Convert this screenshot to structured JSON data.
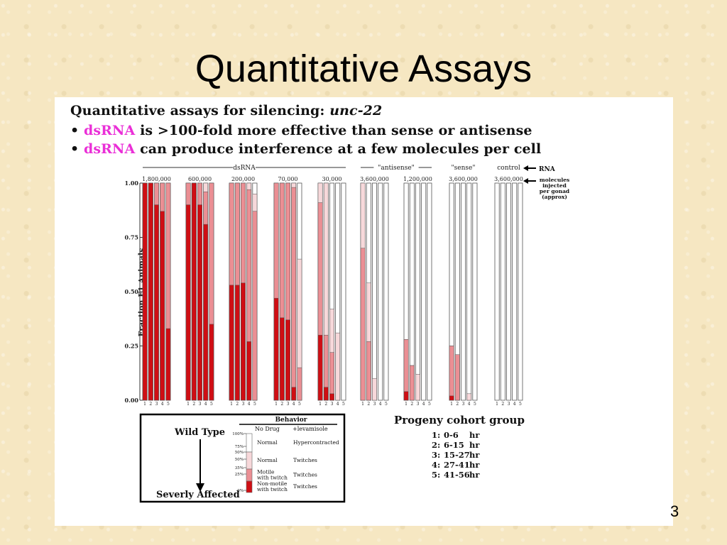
{
  "slide": {
    "title": "Quantitative Assays",
    "page_number": "3"
  },
  "heading": {
    "line1_prefix": "Quantitative assays for silencing: ",
    "line1_gene": "unc-22",
    "bullet": "•",
    "line2_pink": "dsRNA",
    "line2_rest": " is >100-fold more effective than sense or antisense",
    "line3_pink": "dsRNA",
    "line3_rest": " can produce interference at a few molecules per cell"
  },
  "chart_data": {
    "type": "bar",
    "subtype": "stacked",
    "ylabel": "Fraction F1 Animals",
    "ylim": [
      0,
      1
    ],
    "y_ticks": [
      "0.00",
      "0.25",
      "0.50",
      "0.75",
      "1.00"
    ],
    "bar_labels": [
      "1",
      "2",
      "3",
      "4",
      "5"
    ],
    "rna_label": "RNA",
    "molecules_label": [
      "molecules",
      "injected",
      "per gonad",
      "(approx)"
    ],
    "rna_groups": [
      {
        "name": "dsRNA",
        "groups": [
          0,
          1,
          2,
          3,
          4
        ]
      },
      {
        "name": "\"antisense\"",
        "groups": [
          5,
          6
        ]
      },
      {
        "name": "\"sense\"",
        "groups": [
          7
        ]
      },
      {
        "name": "control",
        "groups": [
          8
        ]
      }
    ],
    "series_colors": {
      "dark": "#cf0e14",
      "mid": "#eb8f94",
      "light": "#f7d8da",
      "white": "#ffffff"
    },
    "groups": [
      {
        "label": "1,800,000",
        "bars": [
          [
            1.0,
            1.0,
            1.0
          ],
          [
            1.0,
            1.0,
            1.0
          ],
          [
            0.9,
            1.0,
            1.0
          ],
          [
            0.87,
            1.0,
            1.0
          ],
          [
            0.33,
            1.0,
            1.0
          ]
        ]
      },
      {
        "label": "600,000",
        "bars": [
          [
            0.9,
            1.0,
            1.0
          ],
          [
            1.0,
            1.0,
            1.0
          ],
          [
            0.9,
            1.0,
            1.0
          ],
          [
            0.81,
            0.96,
            1.0
          ],
          [
            0.35,
            1.0,
            1.0
          ]
        ]
      },
      {
        "label": "200,000",
        "bars": [
          [
            0.53,
            1.0,
            1.0
          ],
          [
            0.53,
            1.0,
            1.0
          ],
          [
            0.54,
            1.0,
            1.0
          ],
          [
            0.27,
            0.97,
            1.0
          ],
          [
            0.0,
            0.87,
            0.95
          ]
        ]
      },
      {
        "label": "70,000",
        "bars": [
          [
            0.47,
            1.0,
            1.0
          ],
          [
            0.38,
            1.0,
            1.0
          ],
          [
            0.37,
            1.0,
            1.0
          ],
          [
            0.06,
            0.98,
            1.0
          ],
          [
            0.0,
            0.15,
            0.65
          ]
        ]
      },
      {
        "label": "30,000",
        "bars": [
          [
            0.3,
            0.91,
            1.0
          ],
          [
            0.06,
            0.3,
            1.0
          ],
          [
            0.03,
            0.22,
            0.42
          ],
          [
            0.0,
            0.0,
            0.31
          ],
          [
            0.0,
            0.0,
            0.0
          ]
        ]
      },
      {
        "label": "3,600,000",
        "bars": [
          [
            0.0,
            0.7,
            1.0
          ],
          [
            0.0,
            0.27,
            0.54
          ],
          [
            0.0,
            0.0,
            0.1
          ],
          [
            0.0,
            0.0,
            0.0
          ],
          [
            0.0,
            0.0,
            0.0
          ]
        ]
      },
      {
        "label": "1,200,000",
        "bars": [
          [
            0.04,
            0.28,
            0.28
          ],
          [
            0.0,
            0.16,
            0.16
          ],
          [
            0.0,
            0.0,
            0.12
          ],
          [
            0.0,
            0.0,
            0.0
          ],
          [
            0.0,
            0.0,
            0.0
          ]
        ]
      },
      {
        "label": "3,600,000",
        "bars": [
          [
            0.02,
            0.25,
            0.25
          ],
          [
            0.0,
            0.21,
            0.21
          ],
          [
            0.0,
            0.0,
            0.0
          ],
          [
            0.0,
            0.0,
            0.03
          ],
          [
            0.0,
            0.0,
            0.0
          ]
        ]
      },
      {
        "label": "3,600,000",
        "bars": [
          [
            0.0,
            0.0,
            0.0
          ],
          [
            0.0,
            0.0,
            0.0
          ],
          [
            0.0,
            0.0,
            0.0
          ],
          [
            0.0,
            0.0,
            0.0
          ],
          [
            0.0,
            0.0,
            0.0
          ]
        ]
      }
    ]
  },
  "legend": {
    "wild_type": "Wild Type",
    "severly": "Severly Affected",
    "behavior_header": "Behavior",
    "col_no_drug": "No Drug",
    "col_levamisole": "+levamisole",
    "scale_ticks": [
      "100%",
      "75%",
      "50%",
      "50%",
      "35%",
      "25%",
      "0%"
    ],
    "rows": [
      {
        "no_drug": [
          "Normal"
        ],
        "levamisole": "Hypercontracted",
        "color": "#ffffff"
      },
      {
        "no_drug": [
          "Normal"
        ],
        "levamisole": "Twitches",
        "color": "#f7d8da"
      },
      {
        "no_drug": [
          "Motile",
          "with twitch"
        ],
        "levamisole": "Twitches",
        "color": "#eb8f94"
      },
      {
        "no_drug": [
          "Non-motile",
          "with twitch"
        ],
        "levamisole": "Twitches",
        "color": "#cf0e14"
      }
    ]
  },
  "progeny": {
    "title": "Progeny cohort group",
    "items": [
      {
        "n": "1:",
        "range": "0-6",
        "unit": "hr"
      },
      {
        "n": "2:",
        "range": "6-15",
        "unit": "hr"
      },
      {
        "n": "3:",
        "range": "15-27",
        "unit": "hr"
      },
      {
        "n": "4:",
        "range": "27-41",
        "unit": "hr"
      },
      {
        "n": "5:",
        "range": "41-56",
        "unit": "hr"
      }
    ]
  }
}
